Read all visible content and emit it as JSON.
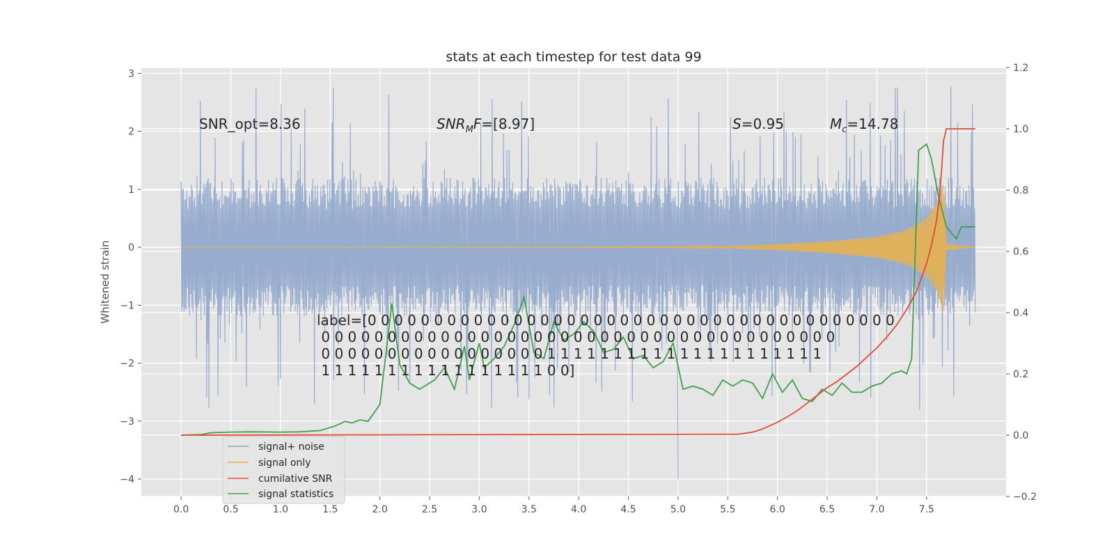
{
  "chart_data": {
    "type": "line",
    "title": "stats at each timestep for test data 99",
    "ylabel": "Whitened strain",
    "ylabel_right": "",
    "xlim": [
      -0.4,
      8.3
    ],
    "ylim": [
      -4.3,
      3.1
    ],
    "ylim_right": [
      -0.2,
      1.2
    ],
    "xticks": [
      "0.0",
      "0.5",
      "1.0",
      "1.5",
      "2.0",
      "2.5",
      "3.0",
      "3.5",
      "4.0",
      "4.5",
      "5.0",
      "5.5",
      "6.0",
      "6.5",
      "7.0",
      "7.5"
    ],
    "yticks": [
      "3",
      "2",
      "1",
      "0",
      "−1",
      "−2",
      "−3",
      "−4"
    ],
    "yticks_right": [
      "1.2",
      "1.0",
      "0.8",
      "0.6",
      "0.4",
      "0.2",
      "0.0",
      "−0.2"
    ],
    "grid": true,
    "legend_position": "bottom-left",
    "colors": {
      "noise": "#8fa6cb",
      "signal": "#e8b14f",
      "cum_snr": "#e24a33",
      "stats": "#3fa04a",
      "axes_bg": "#e5e5e5"
    },
    "annotations": {
      "snr_opt": "SNR_opt=8.36",
      "snr_mf": "SNR_MF=[8.97]",
      "s_stat": "S=0.95",
      "mc": "M_c=14.78",
      "label_lines": [
        "label=[0 0 0 0 0 0 0 0 0 0 0 0 0 0 0 0 0 0 0 0 0 0 0 0 0 0 0 0 0 0 0 0 0 0 0 0 0 0 0 0",
        " 0 0 0 0 0 0 0 0 0 0 0 0 0 0 0 0 0 0 0 0 0 0 0 0 0 0 0 0 0 0 0 0 0 0 0 0 0 0 0",
        " 0 0 0 0 0 0 0 0 0 0 0 0 0 0 0 0 0 1 1 1 1 1 1 1 1 1 1 1 1 1 1 1 1 1 1 1 1 1",
        " 1 1 1 1 1 1 1 1 1 1 1 1 1 1 1 1 1 0 0]"
      ]
    },
    "series": [
      {
        "name": "signal+ noise",
        "description_axis": "left",
        "envelope_x": [
          0.0,
          7.99
        ],
        "typical_abs": 1.2,
        "peak_max": 2.8,
        "peak_min": -4.0
      },
      {
        "name": "signal only",
        "description_axis": "left",
        "envelope": [
          [
            0.0,
            0.0
          ],
          [
            4.0,
            0.005
          ],
          [
            5.0,
            0.01
          ],
          [
            5.5,
            0.02
          ],
          [
            6.0,
            0.05
          ],
          [
            6.5,
            0.1
          ],
          [
            7.0,
            0.18
          ],
          [
            7.3,
            0.3
          ],
          [
            7.5,
            0.5
          ],
          [
            7.6,
            0.75
          ],
          [
            7.67,
            1.1
          ],
          [
            7.7,
            0.05
          ],
          [
            7.99,
            0.0
          ]
        ]
      },
      {
        "name": "cumilative SNR",
        "description_axis": "right",
        "x": [
          0.0,
          5.6,
          5.75,
          5.85,
          6.0,
          6.1,
          6.2,
          6.3,
          6.4,
          6.5,
          6.6,
          6.7,
          6.8,
          6.9,
          7.0,
          7.1,
          7.2,
          7.3,
          7.4,
          7.5,
          7.55,
          7.6,
          7.63,
          7.65,
          7.67,
          7.7,
          7.99
        ],
        "y": [
          0.0,
          0.003,
          0.01,
          0.02,
          0.042,
          0.06,
          0.08,
          0.105,
          0.13,
          0.155,
          0.175,
          0.2,
          0.225,
          0.255,
          0.285,
          0.32,
          0.36,
          0.41,
          0.47,
          0.56,
          0.62,
          0.7,
          0.78,
          0.86,
          0.96,
          1.0,
          1.0
        ]
      },
      {
        "name": "signal statistics",
        "description_axis": "right",
        "x": [
          0.0,
          0.2,
          0.3,
          0.5,
          0.7,
          1.0,
          1.2,
          1.4,
          1.5,
          1.55,
          1.65,
          1.72,
          1.8,
          1.88,
          2.0,
          2.12,
          2.2,
          2.3,
          2.4,
          2.5,
          2.55,
          2.65,
          2.75,
          2.85,
          2.9,
          3.0,
          3.05,
          3.15,
          3.25,
          3.35,
          3.45,
          3.55,
          3.65,
          3.75,
          3.85,
          3.95,
          4.05,
          4.15,
          4.25,
          4.35,
          4.45,
          4.55,
          4.65,
          4.75,
          4.85,
          4.95,
          5.05,
          5.15,
          5.25,
          5.35,
          5.45,
          5.55,
          5.65,
          5.75,
          5.85,
          5.95,
          6.05,
          6.15,
          6.25,
          6.35,
          6.45,
          6.55,
          6.65,
          6.75,
          6.85,
          6.95,
          7.05,
          7.15,
          7.25,
          7.3,
          7.35,
          7.42,
          7.5,
          7.55,
          7.62,
          7.7,
          7.8,
          7.85,
          7.9,
          7.99
        ],
        "y": [
          0.0,
          0.002,
          0.008,
          0.01,
          0.011,
          0.01,
          0.011,
          0.015,
          0.025,
          0.03,
          0.045,
          0.04,
          0.05,
          0.045,
          0.1,
          0.43,
          0.23,
          0.17,
          0.15,
          0.17,
          0.18,
          0.22,
          0.15,
          0.29,
          0.18,
          0.3,
          0.22,
          0.25,
          0.29,
          0.36,
          0.45,
          0.27,
          0.25,
          0.37,
          0.31,
          0.33,
          0.37,
          0.34,
          0.27,
          0.28,
          0.32,
          0.25,
          0.26,
          0.22,
          0.24,
          0.3,
          0.15,
          0.16,
          0.15,
          0.13,
          0.18,
          0.16,
          0.18,
          0.17,
          0.12,
          0.2,
          0.14,
          0.18,
          0.12,
          0.11,
          0.15,
          0.13,
          0.17,
          0.14,
          0.14,
          0.16,
          0.17,
          0.2,
          0.21,
          0.2,
          0.25,
          0.93,
          0.95,
          0.9,
          0.78,
          0.68,
          0.64,
          0.68,
          0.68,
          0.68
        ]
      }
    ]
  }
}
